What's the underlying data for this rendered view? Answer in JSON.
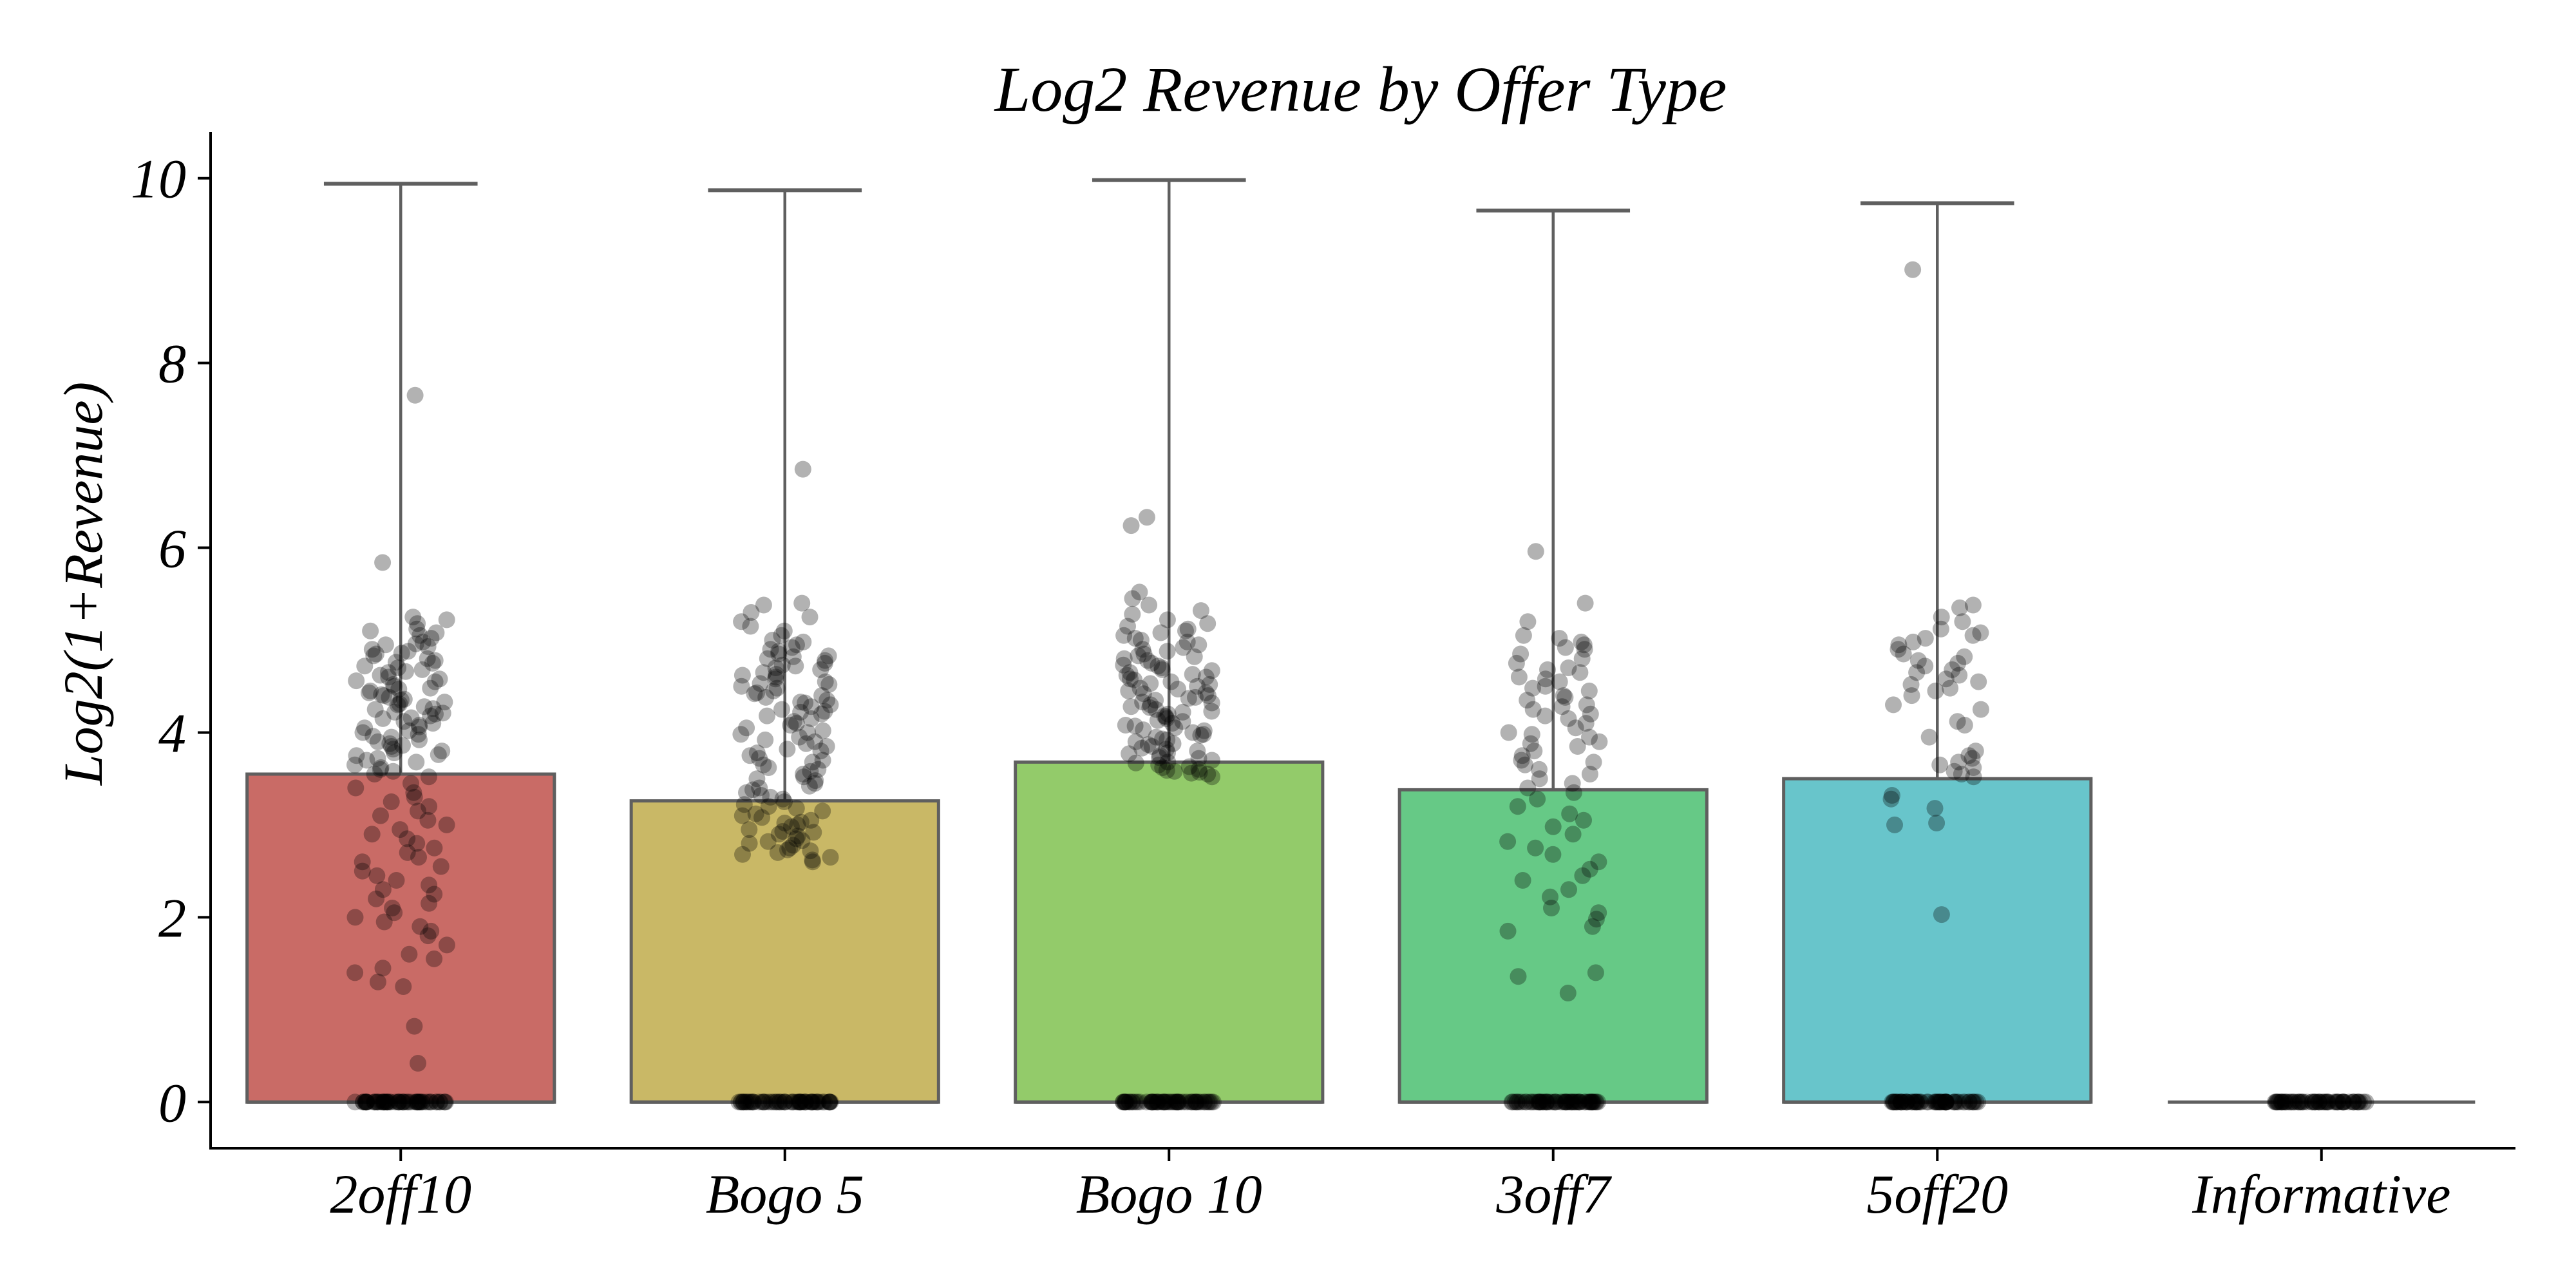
{
  "chart_data": {
    "type": "box",
    "title": "Log2 Revenue by Offer Type",
    "xlabel": "",
    "ylabel": "Log2(1+Revenue)",
    "ylim": [
      -0.5,
      10.5
    ],
    "yticks": [
      0,
      2,
      4,
      6,
      8,
      10
    ],
    "ytick_labels": [
      "0",
      "2",
      "4",
      "6",
      "8",
      "10"
    ],
    "grid": false,
    "legend": "none",
    "categories": [
      "2off10",
      "Bogo 5",
      "Bogo 10",
      "3off7",
      "5off20",
      "Informative"
    ],
    "colors": [
      "#c96b66",
      "#c9b866",
      "#93cb6a",
      "#66c986",
      "#68c5cb",
      "#5f5f5f"
    ],
    "edge_color": "#5f5f5f",
    "point_color": "#000000",
    "boxes": [
      {
        "category": "2off10",
        "q1": 0,
        "median": 0,
        "q3": 3.55,
        "whisker_low": 0,
        "whisker_high": 9.94
      },
      {
        "category": "Bogo 5",
        "q1": 0,
        "median": 0,
        "q3": 3.26,
        "whisker_low": 0,
        "whisker_high": 9.87
      },
      {
        "category": "Bogo 10",
        "q1": 0,
        "median": 0,
        "q3": 3.68,
        "whisker_low": 0,
        "whisker_high": 9.98
      },
      {
        "category": "3off7",
        "q1": 0,
        "median": 0,
        "q3": 3.38,
        "whisker_low": 0,
        "whisker_high": 9.65
      },
      {
        "category": "5off20",
        "q1": 0,
        "median": 0,
        "q3": 3.5,
        "whisker_low": 0,
        "whisker_high": 9.73
      },
      {
        "category": "Informative",
        "q1": 0,
        "median": 0,
        "q3": 0,
        "whisker_low": 0,
        "whisker_high": 0
      }
    ],
    "points": [
      {
        "category": "2off10",
        "zero_count": 60,
        "values": [
          7.65,
          5.84,
          5.25,
          5.22,
          5.18,
          5.12,
          5.1,
          5.08,
          5.05,
          5.02,
          4.98,
          4.95,
          4.93,
          4.9,
          4.88,
          4.85,
          4.83,
          4.8,
          4.78,
          4.75,
          4.72,
          4.7,
          4.68,
          4.65,
          4.62,
          4.6,
          4.58,
          4.55,
          4.52,
          4.5,
          4.48,
          4.45,
          4.43,
          4.4,
          4.38,
          4.35,
          4.33,
          4.3,
          4.28,
          4.25,
          4.22,
          4.2,
          4.18,
          4.15,
          4.12,
          4.1,
          4.08,
          4.05,
          4.02,
          4.0,
          3.98,
          3.95,
          3.92,
          3.9,
          3.88,
          3.85,
          3.82,
          3.8,
          3.78,
          3.75,
          3.72,
          3.7,
          3.68,
          3.65,
          3.62,
          3.6,
          3.58,
          3.55,
          3.52,
          4.47,
          4.36,
          4.26,
          4.16,
          4.06,
          4.56,
          4.66,
          4.76,
          4.86,
          4.96,
          4.41,
          4.31,
          4.21,
          3.96,
          3.86,
          3.76,
          3.45,
          3.4,
          3.35,
          3.3,
          3.25,
          3.2,
          3.15,
          3.1,
          3.05,
          3.0,
          2.95,
          2.9,
          2.85,
          2.8,
          2.75,
          2.7,
          2.65,
          2.6,
          2.55,
          2.5,
          2.45,
          2.4,
          2.35,
          2.3,
          2.25,
          2.2,
          2.15,
          2.1,
          2.05,
          2.0,
          1.95,
          1.9,
          1.85,
          1.8,
          1.7,
          1.6,
          1.55,
          1.45,
          1.4,
          1.3,
          1.25,
          0.82,
          0.42
        ]
      },
      {
        "category": "Bogo 5",
        "zero_count": 60,
        "values": [
          6.85,
          5.4,
          5.38,
          5.3,
          5.25,
          5.2,
          5.15,
          5.1,
          5.05,
          5.0,
          4.98,
          4.95,
          4.92,
          4.9,
          4.88,
          4.85,
          4.82,
          4.8,
          4.78,
          4.75,
          4.72,
          4.7,
          4.68,
          4.65,
          4.62,
          4.6,
          4.58,
          4.55,
          4.52,
          4.5,
          4.48,
          4.45,
          4.42,
          4.4,
          4.38,
          4.35,
          4.32,
          4.3,
          4.28,
          4.25,
          4.22,
          4.2,
          4.18,
          4.15,
          4.12,
          4.1,
          4.08,
          4.05,
          4.02,
          4.0,
          3.98,
          3.95,
          3.92,
          3.9,
          3.88,
          3.85,
          3.82,
          3.8,
          3.78,
          3.75,
          3.72,
          3.7,
          3.68,
          3.65,
          3.62,
          3.6,
          3.58,
          3.55,
          3.52,
          3.5,
          3.48,
          3.45,
          3.42,
          3.4,
          3.38,
          3.35,
          3.32,
          3.3,
          3.28,
          3.25,
          3.22,
          3.2,
          3.18,
          3.15,
          3.12,
          3.1,
          3.08,
          3.05,
          3.02,
          3.0,
          2.98,
          2.95,
          2.92,
          2.9,
          2.88,
          2.85,
          2.82,
          2.8,
          2.78,
          2.75,
          2.72,
          2.7,
          2.68,
          2.65,
          2.62,
          2.6,
          4.53,
          4.43,
          4.33,
          4.23,
          4.63,
          4.73,
          4.83,
          3.03,
          2.93,
          2.83,
          2.73
        ]
      },
      {
        "category": "Bogo 10",
        "zero_count": 60,
        "values": [
          6.33,
          6.24,
          5.52,
          5.45,
          5.38,
          5.32,
          5.28,
          5.22,
          5.18,
          5.15,
          5.12,
          5.1,
          5.08,
          5.05,
          5.02,
          5.0,
          4.98,
          4.95,
          4.92,
          4.9,
          4.88,
          4.85,
          4.82,
          4.8,
          4.78,
          4.75,
          4.72,
          4.7,
          4.68,
          4.65,
          4.62,
          4.6,
          4.58,
          4.55,
          4.52,
          4.5,
          4.48,
          4.45,
          4.42,
          4.4,
          4.38,
          4.35,
          4.32,
          4.3,
          4.28,
          4.25,
          4.22,
          4.2,
          4.18,
          4.15,
          4.12,
          4.1,
          4.08,
          4.05,
          4.02,
          4.0,
          3.98,
          3.95,
          3.92,
          3.9,
          3.88,
          3.85,
          3.82,
          3.8,
          3.78,
          3.75,
          3.72,
          3.7,
          3.68,
          3.65,
          3.62,
          3.6,
          3.58,
          3.55,
          3.52,
          4.67,
          4.57,
          4.47,
          4.37,
          4.27,
          4.17,
          4.07,
          3.97,
          3.87,
          3.77,
          3.67,
          3.57,
          4.83,
          4.73,
          4.63,
          4.53,
          4.43,
          4.33,
          4.23,
          4.13,
          4.03,
          3.93,
          3.83,
          3.73,
          3.63,
          3.59,
          3.56
        ]
      },
      {
        "category": "3off7",
        "zero_count": 60,
        "values": [
          5.96,
          5.4,
          5.2,
          5.05,
          5.02,
          4.98,
          4.95,
          4.92,
          4.9,
          4.85,
          4.8,
          4.75,
          4.7,
          4.65,
          4.6,
          4.55,
          4.5,
          4.45,
          4.4,
          4.35,
          4.3,
          4.25,
          4.2,
          4.15,
          4.1,
          4.05,
          4.0,
          3.95,
          3.9,
          3.85,
          3.8,
          3.75,
          3.7,
          3.65,
          3.6,
          3.55,
          3.5,
          3.45,
          3.4,
          4.48,
          4.38,
          4.28,
          4.58,
          4.68,
          4.18,
          3.98,
          3.88,
          3.68,
          3.35,
          3.28,
          3.2,
          3.12,
          3.05,
          2.98,
          2.9,
          2.82,
          2.75,
          2.68,
          2.6,
          2.52,
          2.45,
          2.4,
          2.3,
          2.22,
          2.1,
          2.05,
          1.98,
          1.9,
          1.85,
          1.4,
          1.36,
          1.18
        ]
      },
      {
        "category": "5off20",
        "zero_count": 60,
        "values": [
          9.01,
          5.38,
          5.35,
          5.25,
          5.2,
          5.12,
          5.08,
          5.05,
          5.02,
          4.98,
          4.95,
          4.9,
          4.85,
          4.82,
          4.78,
          4.75,
          4.72,
          4.68,
          4.65,
          4.62,
          4.58,
          4.55,
          4.52,
          4.48,
          4.45,
          4.4,
          4.3,
          4.25,
          4.12,
          4.08,
          3.95,
          3.8,
          3.75,
          3.72,
          3.68,
          3.65,
          3.62,
          3.58,
          3.55,
          3.52,
          3.32,
          3.28,
          3.18,
          3.02,
          3.0,
          2.03
        ]
      },
      {
        "category": "Informative",
        "zero_count": 60,
        "values": []
      }
    ]
  }
}
